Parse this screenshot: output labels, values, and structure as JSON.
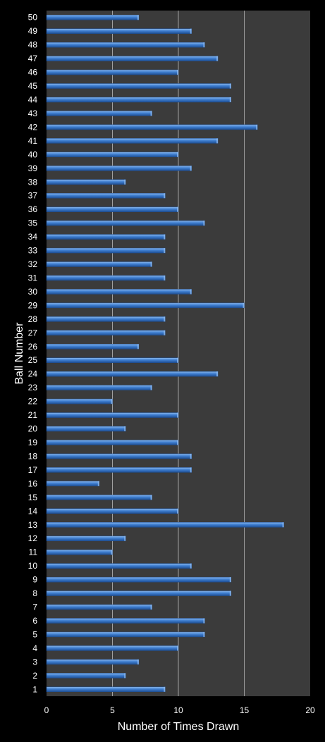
{
  "chart_data": {
    "type": "bar",
    "orientation": "horizontal",
    "title": "",
    "xlabel": "Number of Times Drawn",
    "ylabel": "Ball Number",
    "xlim": [
      0,
      20
    ],
    "xticks": [
      0,
      5,
      10,
      15,
      20
    ],
    "grid": true,
    "legend": "none",
    "categories": [
      "1",
      "2",
      "3",
      "4",
      "5",
      "6",
      "7",
      "8",
      "9",
      "10",
      "11",
      "12",
      "13",
      "14",
      "15",
      "16",
      "17",
      "18",
      "19",
      "20",
      "21",
      "22",
      "23",
      "24",
      "25",
      "26",
      "27",
      "28",
      "29",
      "30",
      "31",
      "32",
      "33",
      "34",
      "35",
      "36",
      "37",
      "38",
      "39",
      "40",
      "41",
      "42",
      "43",
      "44",
      "45",
      "46",
      "47",
      "48",
      "49",
      "50"
    ],
    "values": [
      9,
      6,
      7,
      10,
      12,
      12,
      8,
      14,
      14,
      11,
      5,
      6,
      18,
      10,
      8,
      4,
      11,
      11,
      10,
      6,
      10,
      5,
      8,
      13,
      10,
      7,
      9,
      9,
      15,
      11,
      9,
      8,
      9,
      9,
      12,
      10,
      9,
      6,
      11,
      10,
      13,
      16,
      8,
      14,
      14,
      10,
      13,
      12,
      11,
      7
    ]
  },
  "colors": {
    "background": "#000000",
    "plot_area": "#3b3b3b",
    "gridline": "#a0a0a0",
    "bar_light": "#8cb8ec",
    "bar_main": "#3f7fd1",
    "bar_dark": "#1f4f93",
    "text": "#ffffff"
  }
}
